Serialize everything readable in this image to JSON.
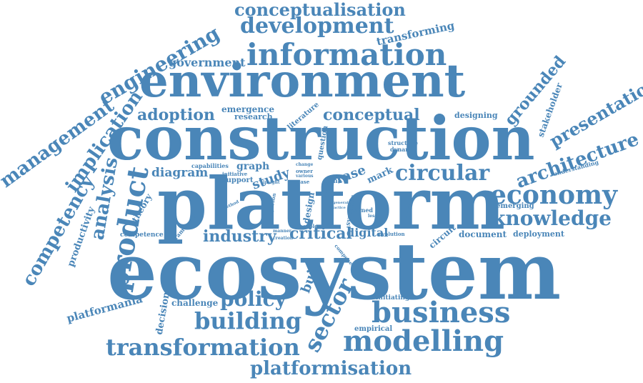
{
  "accent_color": "#4a86b8",
  "background_color": "#ffffff",
  "words": [
    "ecosystem",
    "platform",
    "construction",
    "environment",
    "information",
    "business",
    "modelling",
    "transformation",
    "platformisation",
    "building",
    "policy",
    "sector",
    "economy",
    "knowledge",
    "circular",
    "product",
    "architecture",
    "development",
    "conceptualisation",
    "engineering",
    "management",
    "implication",
    "competency",
    "analysis",
    "presentation",
    "adoption",
    "conceptual",
    "industry",
    "critical",
    "digital",
    "diagram",
    "study",
    "graph",
    "government",
    "emergence",
    "research",
    "grounded",
    "stakeholder",
    "transforming",
    "designing",
    "literature",
    "question",
    "structure",
    "dynamic",
    "capabilities",
    "initiative",
    "support",
    "insight",
    "change",
    "owner",
    "various",
    "case",
    "dfma",
    "rase",
    "mark",
    "tree",
    "agenda",
    "design",
    "lesson",
    "systemic",
    "learned",
    "general",
    "practice",
    "explore",
    "person",
    "method",
    "framework",
    "competence",
    "productivity",
    "theory",
    "manner",
    "creation",
    "component",
    "circuit",
    "evolution",
    "national",
    "built",
    "document",
    "deployment",
    "emerging",
    "understanding",
    "initiating",
    "empirical",
    "challenge",
    "decision",
    "platformania"
  ]
}
